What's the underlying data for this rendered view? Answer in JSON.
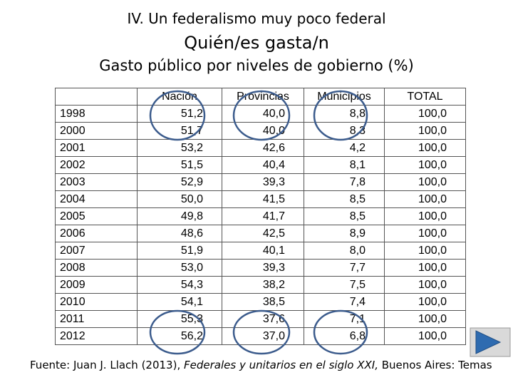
{
  "header": {
    "supertitle": "IV. Un federalismo muy poco federal",
    "title": "Quién/es gasta/n",
    "subtitle": "Gasto público por niveles de gobierno (%)"
  },
  "table": {
    "columns": [
      "Nación",
      "Provincias",
      "Municipios",
      "TOTAL"
    ],
    "rows": [
      [
        "1998",
        "51,2",
        "40,0",
        "8,8",
        "100,0"
      ],
      [
        "2000",
        "51,7",
        "40,0",
        "8,3",
        "100,0"
      ],
      [
        "2001",
        "53,2",
        "42,6",
        "4,2",
        "100,0"
      ],
      [
        "2002",
        "51,5",
        "40,4",
        "8,1",
        "100,0"
      ],
      [
        "2003",
        "52,9",
        "39,3",
        "7,8",
        "100,0"
      ],
      [
        "2004",
        "50,0",
        "41,5",
        "8,5",
        "100,0"
      ],
      [
        "2005",
        "49,8",
        "41,7",
        "8,5",
        "100,0"
      ],
      [
        "2006",
        "48,6",
        "42,5",
        "8,9",
        "100,0"
      ],
      [
        "2007",
        "51,9",
        "40,1",
        "8,0",
        "100,0"
      ],
      [
        "2008",
        "53,0",
        "39,3",
        "7,7",
        "100,0"
      ],
      [
        "2009",
        "54,3",
        "38,2",
        "7,5",
        "100,0"
      ],
      [
        "2010",
        "54,1",
        "38,5",
        "7,4",
        "100,0"
      ],
      [
        "2011",
        "55,3",
        "37,6",
        "7,1",
        "100,0"
      ],
      [
        "2012",
        "56,2",
        "37,0",
        "6,8",
        "100,0"
      ]
    ]
  },
  "source": {
    "before": "Fuente: Juan J. Llach (2013), ",
    "italic": "Federales y unitarios en el siglo XXI,",
    "after": " Buenos Aires: Temas"
  }
}
